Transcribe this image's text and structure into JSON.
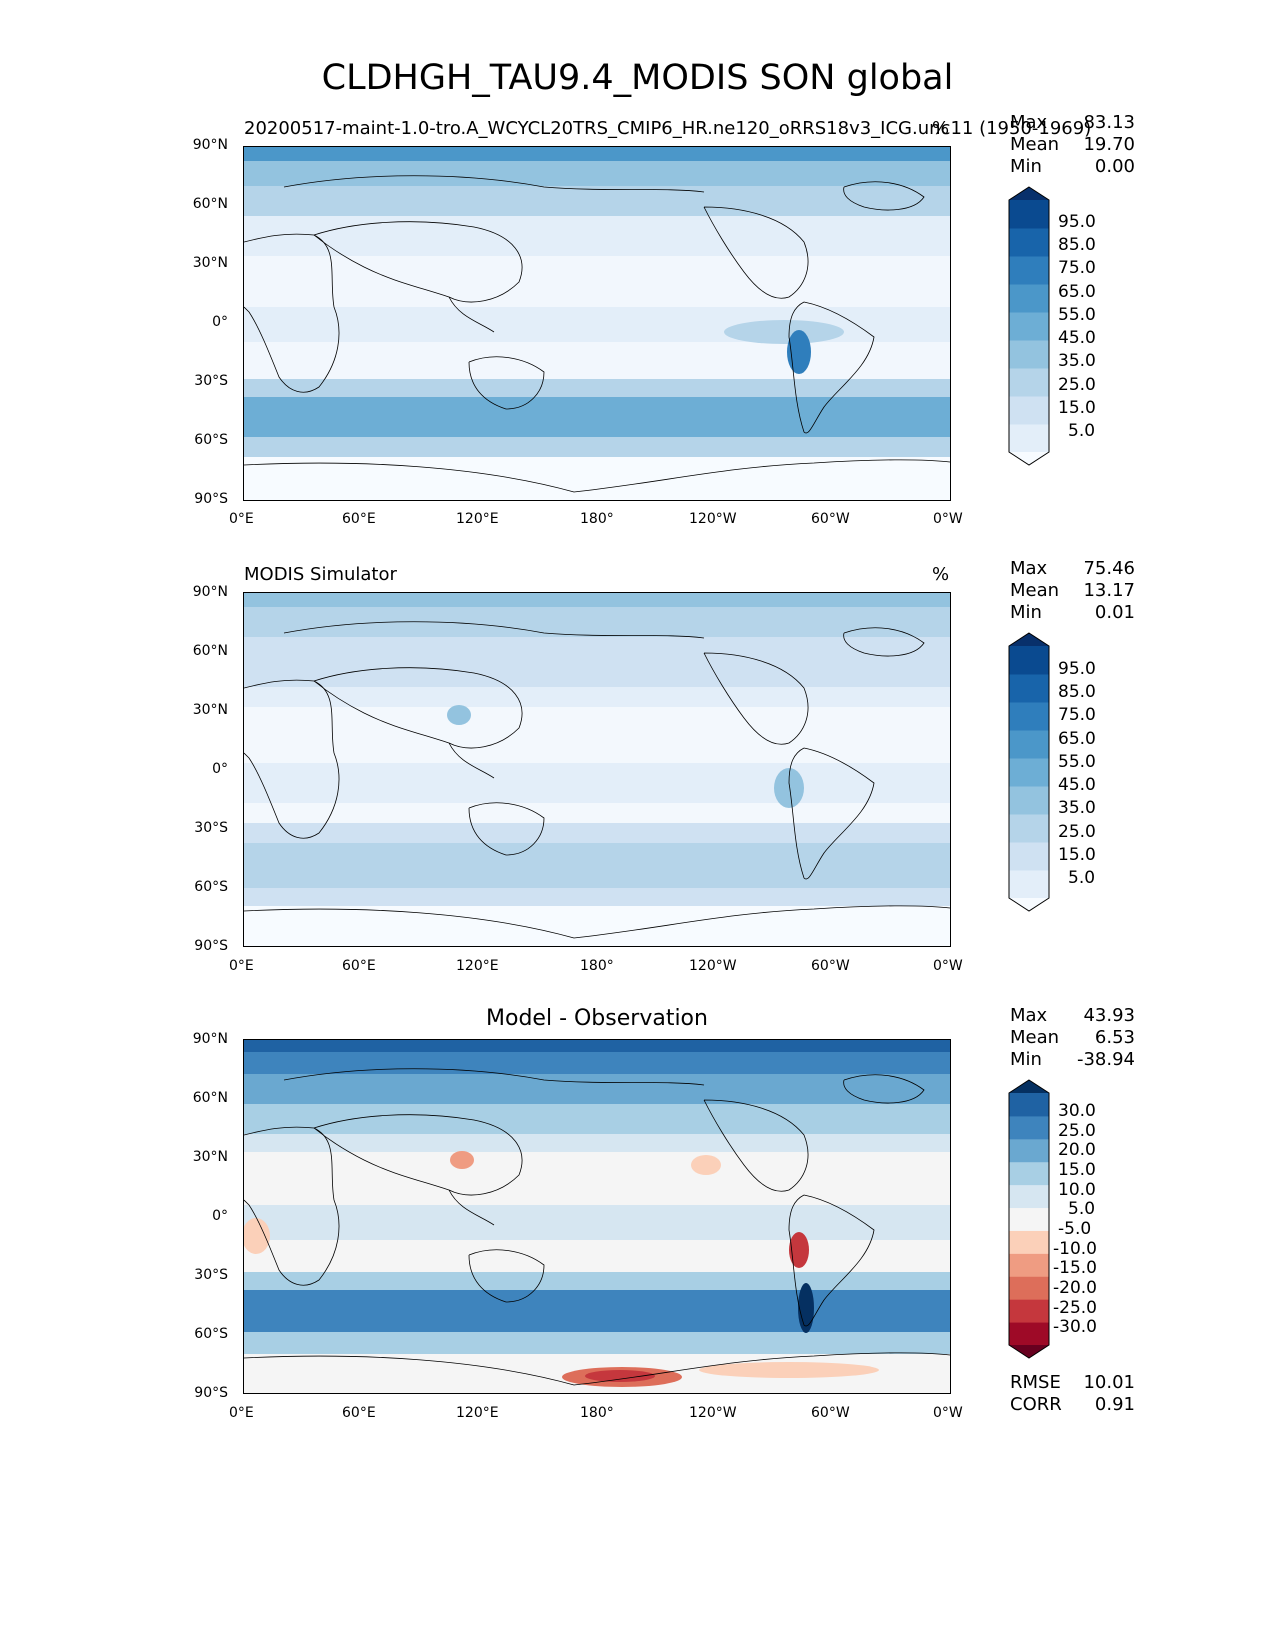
{
  "figure": {
    "title": "CLDHGH_TAU9.4_MODIS SON global"
  },
  "axes": {
    "lat_ticks": [
      "90°N",
      "60°N",
      "30°N",
      "0°",
      "30°S",
      "60°S",
      "90°S"
    ],
    "lon_ticks": [
      "0°E",
      "60°E",
      "120°E",
      "180°",
      "120°W",
      "60°W",
      "0°W"
    ]
  },
  "panels": [
    {
      "id": "test",
      "left_title": "20200517-maint-1.0-tro.A_WCYCL20TRS_CMIP6_HR.ne120_oRRS18v3_ICG.unc11 (1950-1969)",
      "center_title": "",
      "units": "%",
      "stats": [
        {
          "label": "Max",
          "value": "83.13"
        },
        {
          "label": "Mean",
          "value": "19.70"
        },
        {
          "label": "Min",
          "value": "0.00"
        }
      ],
      "colorbar_labels": [
        "95.0",
        "85.0",
        "75.0",
        "65.0",
        "55.0",
        "45.0",
        "35.0",
        "25.0",
        "15.0",
        "5.0"
      ],
      "colorbar_colors": [
        "#f7fbff",
        "#e3eef9",
        "#cfe1f2",
        "#b5d4e9",
        "#93c3df",
        "#6daed5",
        "#4b97c9",
        "#2f7ebc",
        "#1864aa",
        "#0a4a90",
        "#08306b"
      ],
      "footer": []
    },
    {
      "id": "ref",
      "left_title": "MODIS Simulator",
      "center_title": "",
      "units": "%",
      "stats": [
        {
          "label": "Max",
          "value": "75.46"
        },
        {
          "label": "Mean",
          "value": "13.17"
        },
        {
          "label": "Min",
          "value": "0.01"
        }
      ],
      "colorbar_labels": [
        "95.0",
        "85.0",
        "75.0",
        "65.0",
        "55.0",
        "45.0",
        "35.0",
        "25.0",
        "15.0",
        "5.0"
      ],
      "colorbar_colors": [
        "#f7fbff",
        "#e3eef9",
        "#cfe1f2",
        "#b5d4e9",
        "#93c3df",
        "#6daed5",
        "#4b97c9",
        "#2f7ebc",
        "#1864aa",
        "#0a4a90",
        "#08306b"
      ],
      "footer": []
    },
    {
      "id": "diff",
      "left_title": "",
      "center_title": "Model - Observation",
      "units": "",
      "stats": [
        {
          "label": "Max",
          "value": "43.93"
        },
        {
          "label": "Mean",
          "value": "6.53"
        },
        {
          "label": "Min",
          "value": "-38.94"
        }
      ],
      "colorbar_labels": [
        "30.0",
        "25.0",
        "20.0",
        "15.0",
        "10.0",
        "5.0",
        "-5.0",
        "-10.0",
        "-15.0",
        "-20.0",
        "-25.0",
        "-30.0"
      ],
      "colorbar_colors": [
        "#67001f",
        "#9e0a27",
        "#c5373d",
        "#dd6e5a",
        "#ef9c82",
        "#fbd0b9",
        "#f5f5f5",
        "#d6e6f1",
        "#a8cfe4",
        "#6aa8d0",
        "#3e84bd",
        "#1f62a3",
        "#053061"
      ],
      "footer": [
        {
          "label": "RMSE",
          "value": "10.01"
        },
        {
          "label": "CORR",
          "value": "0.91"
        }
      ]
    }
  ]
}
